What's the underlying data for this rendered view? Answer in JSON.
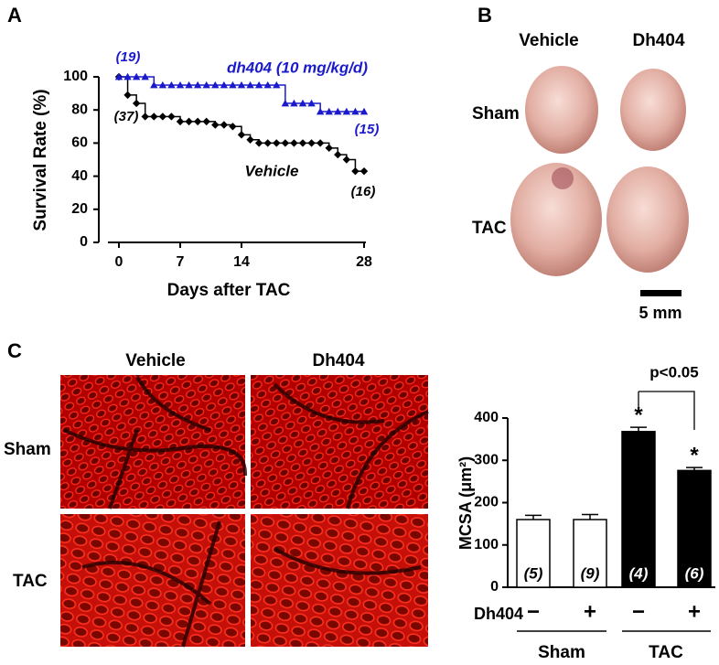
{
  "panel_labels": [
    "A",
    "B",
    "C"
  ],
  "chart_data": [
    {
      "type": "step",
      "xlabel": "Days after TAC",
      "ylabel": "Survival Rate (%)",
      "x": [
        0,
        1,
        2,
        3,
        4,
        5,
        6,
        7,
        8,
        9,
        10,
        11,
        12,
        13,
        14,
        15,
        16,
        17,
        18,
        19,
        20,
        21,
        22,
        23,
        24,
        25,
        26,
        27,
        28
      ],
      "series": [
        {
          "name": "Vehicle",
          "color": "#000000",
          "marker": "diamond",
          "values": [
            100,
            89,
            84,
            76,
            76,
            76,
            76,
            73,
            73,
            73,
            73,
            71,
            71,
            70,
            65,
            62,
            60,
            60,
            60,
            60,
            60,
            60,
            60,
            60,
            57,
            53,
            50,
            43,
            43
          ]
        },
        {
          "name": "dh404 (10 mg/kg/d)",
          "color": "#1a1acc",
          "marker": "triangle",
          "values": [
            100,
            100,
            100,
            100,
            95,
            95,
            95,
            95,
            95,
            95,
            95,
            95,
            95,
            95,
            95,
            95,
            95,
            95,
            95,
            84,
            84,
            84,
            84,
            79,
            79,
            79,
            79,
            79,
            79
          ]
        }
      ],
      "annotations": [
        {
          "text": "(19)",
          "color": "#1a1acc"
        },
        {
          "text": "(37)",
          "color": "#000000"
        },
        {
          "text": "(16)",
          "color": "#000000"
        },
        {
          "text": "(15)",
          "color": "#1a1acc"
        }
      ],
      "xlim": [
        0,
        28
      ],
      "xticks": [
        0,
        7,
        14,
        28
      ],
      "ylim": [
        0,
        100
      ],
      "yticks": [
        0,
        20,
        40,
        60,
        80,
        100
      ]
    },
    {
      "type": "bar",
      "ylabel": "MCSA (μm²)",
      "x_row_label": "Dh404",
      "categories": [
        "−",
        "+",
        "−",
        "+"
      ],
      "groups": [
        "Sham",
        "TAC"
      ],
      "values": [
        160,
        160,
        368,
        276
      ],
      "errors": [
        10,
        12,
        10,
        7
      ],
      "colors": [
        "#ffffff",
        "#ffffff",
        "#000000",
        "#000000"
      ],
      "n_labels": [
        "(5)",
        "(9)",
        "(4)",
        "(6)"
      ],
      "significance": [
        null,
        null,
        "*",
        "*"
      ],
      "comparison_label": "p<0.05",
      "ylim": [
        0,
        400
      ],
      "yticks": [
        0,
        100,
        200,
        300,
        400
      ]
    }
  ],
  "panel_b": {
    "columns": [
      "Vehicle",
      "Dh404"
    ],
    "rows": [
      "Sham",
      "TAC"
    ],
    "scale_bar": "5 mm"
  },
  "panel_c": {
    "columns": [
      "Vehicle",
      "Dh404"
    ],
    "rows": [
      "Sham",
      "TAC"
    ]
  }
}
